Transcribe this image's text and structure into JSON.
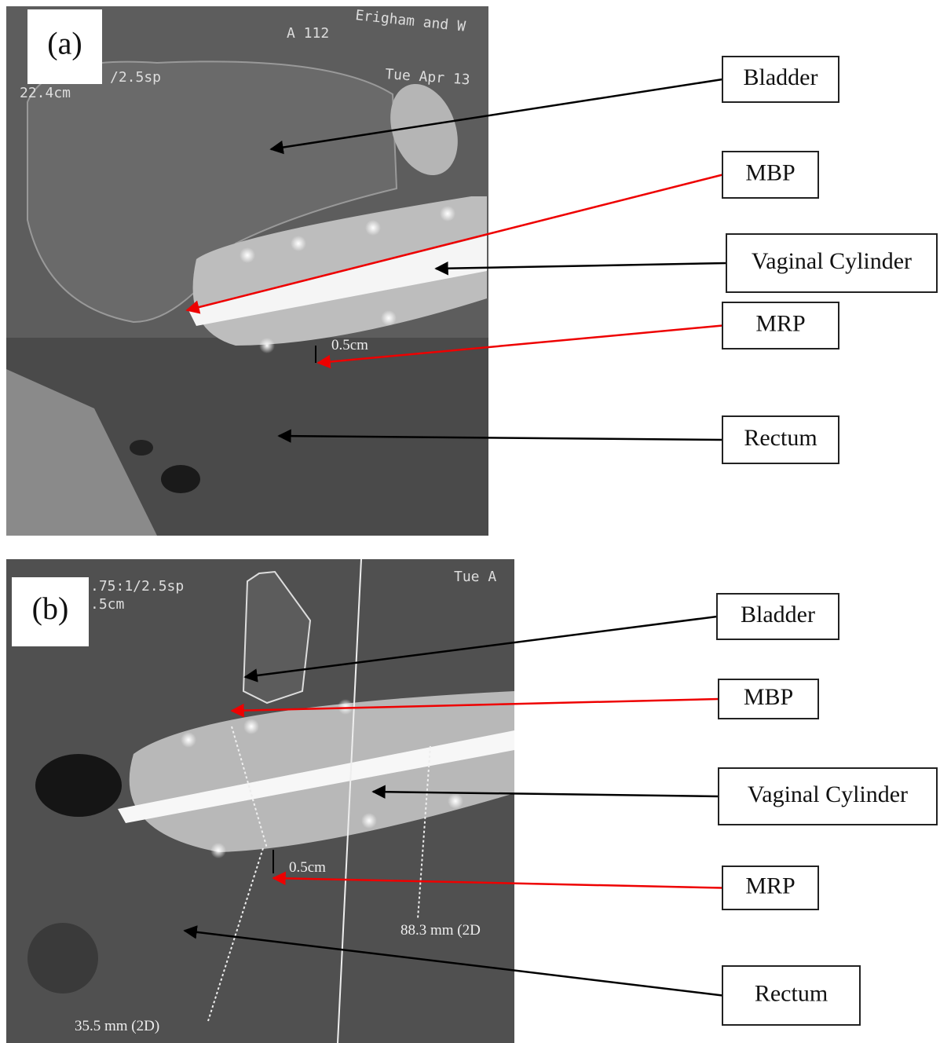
{
  "panels": [
    {
      "label": "(a)",
      "overlay_texts": [
        "A 112",
        "Erigham and W",
        "Tue Apr 13",
        "/2.5sp",
        "22.4cm"
      ],
      "measurements": [
        "0.5cm"
      ],
      "callouts": [
        "Bladder",
        "MBP",
        "Vaginal Cylinder",
        "MRP",
        "Rectum"
      ]
    },
    {
      "label": "(b)",
      "overlay_texts": [
        ".75:1/2.5sp",
        ".5cm",
        "Tue A"
      ],
      "measurements": [
        "0.5cm",
        "88.3 mm (2D",
        "35.5 mm (2D)"
      ],
      "callouts": [
        "Bladder",
        "MBP",
        "Vaginal Cylinder",
        "MRP",
        "Rectum"
      ]
    }
  ]
}
